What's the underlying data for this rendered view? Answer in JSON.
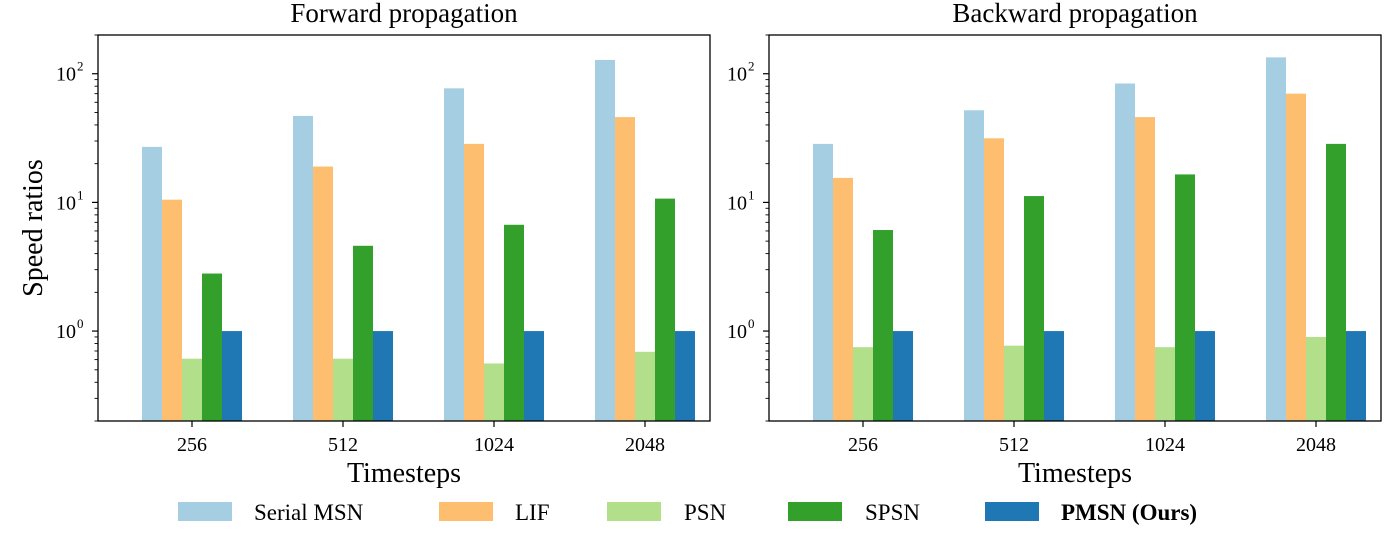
{
  "chart_data": {
    "type": "bar",
    "yscale": "log",
    "ylim": [
      0.2,
      200
    ],
    "yticks": [
      1,
      10,
      100
    ],
    "ytick_labels": [
      {
        "base": "10",
        "exp": "0"
      },
      {
        "base": "10",
        "exp": "1"
      },
      {
        "base": "10",
        "exp": "2"
      }
    ],
    "ylabel": "Speed ratios",
    "series_names": [
      "Serial MSN",
      "LIF",
      "PSN",
      "SPSN",
      "PMSN (Ours)"
    ],
    "colors": [
      "#a6cee3",
      "#fdbf6f",
      "#b2df8a",
      "#33a02c",
      "#1f78b4"
    ],
    "legend": {
      "placement": "bottom-center",
      "entries": [
        {
          "label": "Serial MSN",
          "bold": false
        },
        {
          "label": "LIF",
          "bold": false
        },
        {
          "label": "PSN",
          "bold": false
        },
        {
          "label": "SPSN",
          "bold": false
        },
        {
          "label": "PMSN (Ours)",
          "bold": true
        }
      ]
    },
    "panels": [
      {
        "title": "Forward propagation",
        "xlabel": "Timesteps",
        "categories": [
          "256",
          "512",
          "1024",
          "2048"
        ],
        "series": [
          {
            "name": "Serial MSN",
            "values": [
              27,
              47,
              77,
              128
            ]
          },
          {
            "name": "LIF",
            "values": [
              10.5,
              19,
              28.5,
              46
            ]
          },
          {
            "name": "PSN",
            "values": [
              0.61,
              0.61,
              0.56,
              0.69
            ]
          },
          {
            "name": "SPSN",
            "values": [
              2.8,
              4.6,
              6.7,
              10.7
            ]
          },
          {
            "name": "PMSN (Ours)",
            "values": [
              1,
              1,
              1,
              1
            ]
          }
        ]
      },
      {
        "title": "Backward propagation",
        "xlabel": "Timesteps",
        "categories": [
          "256",
          "512",
          "1024",
          "2048"
        ],
        "series": [
          {
            "name": "Serial MSN",
            "values": [
              28.5,
              52,
              84,
              134
            ]
          },
          {
            "name": "LIF",
            "values": [
              15.5,
              31.5,
              46,
              70
            ]
          },
          {
            "name": "PSN",
            "values": [
              0.75,
              0.77,
              0.75,
              0.9
            ]
          },
          {
            "name": "SPSN",
            "values": [
              6.1,
              11.2,
              16.5,
              28.5
            ]
          },
          {
            "name": "PMSN (Ours)",
            "values": [
              1,
              1,
              1,
              1
            ]
          }
        ]
      }
    ]
  }
}
